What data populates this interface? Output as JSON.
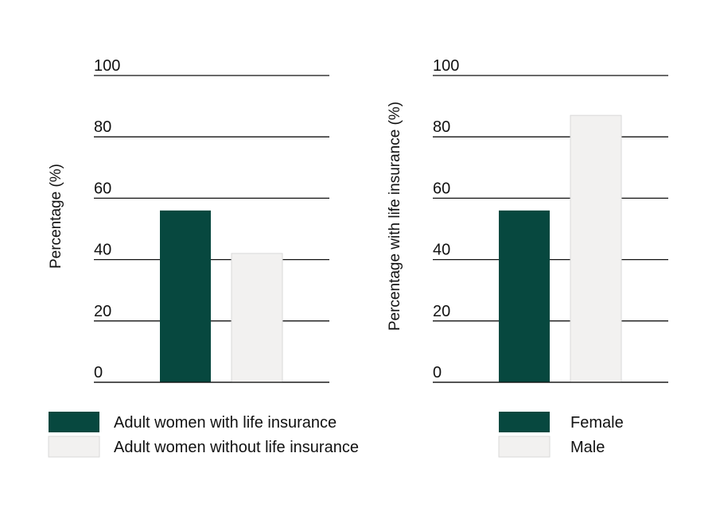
{
  "chart_data": [
    {
      "type": "bar",
      "title": "",
      "xlabel": "",
      "ylabel": "Percentage (%)",
      "ylim": [
        0,
        100
      ],
      "yticks": [
        0,
        20,
        40,
        60,
        80,
        100
      ],
      "grid": true,
      "legend_position": "bottom",
      "categories": [
        "Adult women with life insurance",
        "Adult women without life insurance"
      ],
      "values": [
        56,
        42
      ],
      "colors": [
        "#07483f",
        "#f2f1f0"
      ],
      "legend": [
        "Adult women with life insurance",
        "Adult women without life insurance"
      ]
    },
    {
      "type": "bar",
      "title": "",
      "xlabel": "",
      "ylabel": "Percentage with life insurance  (%)",
      "ylim": [
        0,
        100
      ],
      "yticks": [
        0,
        20,
        40,
        60,
        80,
        100
      ],
      "grid": true,
      "legend_position": "bottom",
      "categories": [
        "Female",
        "Male"
      ],
      "values": [
        56,
        87
      ],
      "colors": [
        "#07483f",
        "#f2f1f0"
      ],
      "legend": [
        "Female",
        "Male"
      ]
    }
  ],
  "style": {
    "dark_green": "#07483f",
    "light_gray": "#f2f1f0",
    "light_gray_border": "#d9d9d9",
    "grid_color": "#111111"
  }
}
